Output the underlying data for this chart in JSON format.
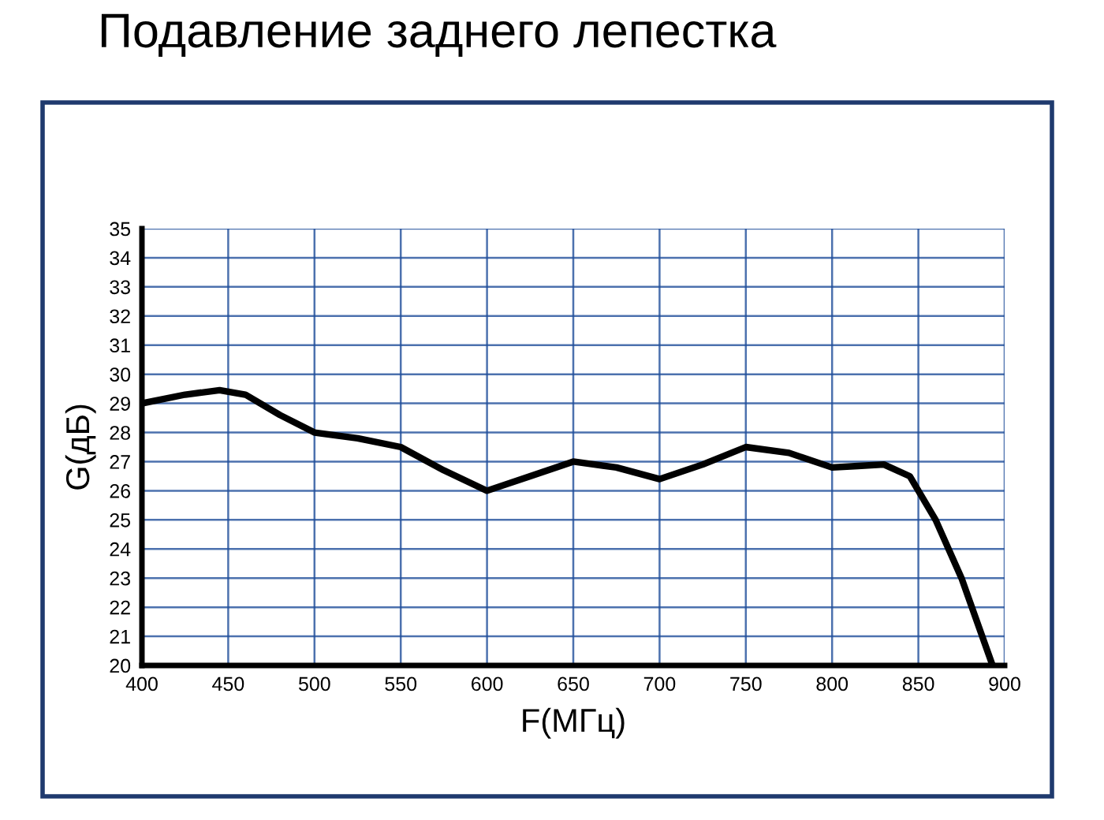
{
  "chart_data": {
    "type": "line",
    "title": "Подавление заднего лепестка",
    "xlabel": "F(МГц)",
    "ylabel": "G(дБ)",
    "x": [
      400,
      425,
      445,
      460,
      480,
      500,
      525,
      550,
      575,
      600,
      625,
      650,
      675,
      700,
      725,
      750,
      775,
      800,
      815,
      830,
      845,
      860,
      875,
      893
    ],
    "series": [
      {
        "color": "#000000",
        "values": [
          29,
          29.3,
          29.45,
          29.3,
          28.6,
          28.0,
          27.8,
          27.5,
          26.7,
          26.0,
          26.5,
          27.0,
          26.8,
          26.4,
          26.9,
          27.5,
          27.3,
          26.8,
          26.85,
          26.9,
          26.5,
          25.0,
          23.0,
          20
        ]
      }
    ],
    "xlim": [
      400,
      900
    ],
    "ylim": [
      20,
      35
    ],
    "xticks": [
      400,
      450,
      500,
      550,
      600,
      650,
      700,
      750,
      800,
      850,
      900
    ],
    "yticks": [
      20,
      21,
      22,
      23,
      24,
      25,
      26,
      27,
      28,
      29,
      30,
      31,
      32,
      33,
      34,
      35
    ],
    "grid": true,
    "legend": false,
    "marker": "none",
    "line_style": "solid"
  }
}
